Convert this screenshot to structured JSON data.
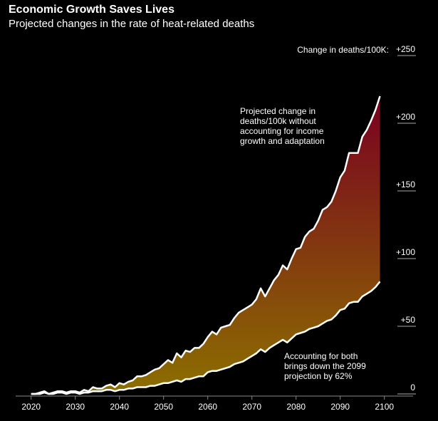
{
  "chart_data": {
    "type": "line",
    "title": "Economic Growth Saves Lives",
    "subtitle": "Projected changes in the rate of heat-related deaths",
    "y_label": "Change in deaths/100K:",
    "x": [
      2020,
      2021,
      2022,
      2023,
      2024,
      2025,
      2026,
      2027,
      2028,
      2029,
      2030,
      2031,
      2032,
      2033,
      2034,
      2035,
      2036,
      2037,
      2038,
      2039,
      2040,
      2041,
      2042,
      2043,
      2044,
      2045,
      2046,
      2047,
      2048,
      2049,
      2050,
      2051,
      2052,
      2053,
      2054,
      2055,
      2056,
      2057,
      2058,
      2059,
      2060,
      2061,
      2062,
      2063,
      2064,
      2065,
      2066,
      2067,
      2068,
      2069,
      2070,
      2071,
      2072,
      2073,
      2074,
      2075,
      2076,
      2077,
      2078,
      2079,
      2080,
      2081,
      2082,
      2083,
      2084,
      2085,
      2086,
      2087,
      2088,
      2089,
      2090,
      2091,
      2092,
      2093,
      2094,
      2095,
      2096,
      2097,
      2098,
      2099
    ],
    "series": [
      {
        "color": "#ffffff",
        "values": [
          0,
          0,
          1,
          2,
          0,
          1,
          2,
          2,
          1,
          2,
          2,
          1,
          3,
          2,
          5,
          4,
          4,
          6,
          7,
          5,
          8,
          7,
          9,
          10,
          13,
          13,
          14,
          16,
          18,
          19,
          22,
          25,
          23,
          30,
          27,
          32,
          31,
          34,
          34,
          37,
          42,
          46,
          44,
          49,
          50,
          51,
          56,
          60,
          62,
          64,
          66,
          70,
          78,
          72,
          78,
          84,
          88,
          95,
          92,
          100,
          107,
          108,
          116,
          120,
          122,
          128,
          136,
          138,
          142,
          150,
          160,
          165,
          178,
          178,
          178,
          190,
          195,
          202,
          210,
          220
        ]
      },
      {
        "color": "#ffffff",
        "values": [
          0,
          0,
          0,
          1,
          0,
          0,
          1,
          1,
          0,
          1,
          1,
          0,
          1,
          1,
          2,
          2,
          2,
          3,
          3,
          2,
          3,
          3,
          4,
          4,
          5,
          5,
          5,
          6,
          6,
          7,
          8,
          8,
          9,
          10,
          9,
          11,
          11,
          12,
          13,
          13,
          16,
          17,
          17,
          18,
          19,
          20,
          22,
          23,
          24,
          26,
          28,
          30,
          33,
          31,
          34,
          36,
          38,
          40,
          38,
          41,
          44,
          45,
          46,
          48,
          49,
          50,
          52,
          54,
          55,
          58,
          62,
          63,
          67,
          68,
          68,
          72,
          74,
          76,
          79,
          83
        ]
      }
    ],
    "fill_colors": [
      "#7a0020",
      "#8c6f00"
    ],
    "annotations": [
      {
        "lines": [
          "Projected change in",
          "deaths/100k without",
          "accounting for income",
          "growth and adaptation"
        ]
      },
      {
        "lines": [
          "Accounting for both",
          "brings down the 2099",
          "projection by 62%"
        ]
      }
    ],
    "xlim": [
      2016.5,
      2106.5
    ],
    "xticks": [
      2020,
      2030,
      2040,
      2050,
      2060,
      2070,
      2080,
      2090,
      2100
    ],
    "ylim": [
      0,
      250
    ],
    "yticks": [
      0,
      {
        "value": 50,
        "label": "+50"
      },
      {
        "value": 100,
        "label": "+100"
      },
      {
        "value": 150,
        "label": "+150"
      },
      {
        "value": 200,
        "label": "+200"
      },
      {
        "value": 250,
        "label": "+250"
      }
    ]
  }
}
